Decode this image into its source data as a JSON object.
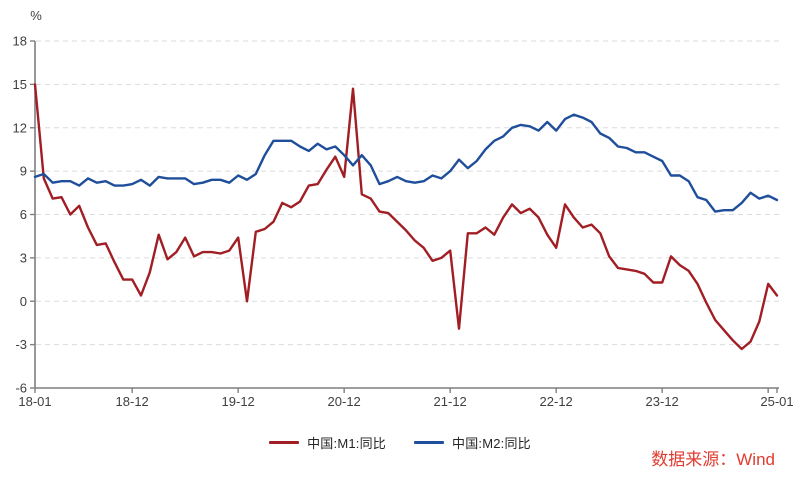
{
  "chart": {
    "unit_label": "%",
    "source_label": "数据来源：Wind",
    "colors": {
      "m1_line": "#a01e24",
      "m2_line": "#1f4e9b",
      "axis": "#7f7f7f",
      "grid": "#dbdbdb",
      "tick_text": "#404040",
      "source_text": "#e03c31"
    }
  },
  "chart_data": {
    "type": "line",
    "title": "",
    "ylabel": "%",
    "ylim": [
      -6,
      18
    ],
    "y_ticks": [
      18,
      15,
      12,
      9,
      6,
      3,
      0,
      -3,
      -6
    ],
    "grid": "horizontal-dashed",
    "legend_position": "bottom-center",
    "x_start": "2018-01",
    "x_end": "2025-01",
    "x_ticks": [
      {
        "label": "18-01",
        "month_index": 0
      },
      {
        "label": "18-12",
        "month_index": 11
      },
      {
        "label": "19-12",
        "month_index": 23
      },
      {
        "label": "20-12",
        "month_index": 35
      },
      {
        "label": "21-12",
        "month_index": 47
      },
      {
        "label": "22-12",
        "month_index": 59
      },
      {
        "label": "23-12",
        "month_index": 71
      },
      {
        "label": "",
        "month_index": 83
      },
      {
        "label": "25-01",
        "month_index": 84
      }
    ],
    "series": [
      {
        "name": "中国:M1:同比",
        "color": "#a01e24",
        "values": [
          15.0,
          8.5,
          7.1,
          7.2,
          6.0,
          6.6,
          5.1,
          3.9,
          4.0,
          2.7,
          1.5,
          1.5,
          0.4,
          2.0,
          4.6,
          2.9,
          3.4,
          4.4,
          3.1,
          3.4,
          3.4,
          3.3,
          3.5,
          4.4,
          0.0,
          4.8,
          5.0,
          5.5,
          6.8,
          6.5,
          6.9,
          8.0,
          8.1,
          9.1,
          10.0,
          8.6,
          14.7,
          7.4,
          7.1,
          6.2,
          6.1,
          5.5,
          4.9,
          4.2,
          3.7,
          2.8,
          3.0,
          3.5,
          -1.9,
          4.7,
          4.7,
          5.1,
          4.6,
          5.8,
          6.7,
          6.1,
          6.4,
          5.8,
          4.6,
          3.7,
          6.7,
          5.8,
          5.1,
          5.3,
          4.7,
          3.1,
          2.3,
          2.2,
          2.1,
          1.9,
          1.3,
          1.3,
          3.1,
          2.5,
          2.1,
          1.2,
          -0.1,
          -1.3,
          -2.0,
          -2.7,
          -3.3,
          -2.8,
          -1.4,
          1.2,
          0.4
        ]
      },
      {
        "name": "中国:M2:同比",
        "color": "#1f4e9b",
        "values": [
          8.6,
          8.8,
          8.2,
          8.3,
          8.3,
          8.0,
          8.5,
          8.2,
          8.3,
          8.0,
          8.0,
          8.1,
          8.4,
          8.0,
          8.6,
          8.5,
          8.5,
          8.5,
          8.1,
          8.2,
          8.4,
          8.4,
          8.2,
          8.7,
          8.4,
          8.8,
          10.1,
          11.1,
          11.1,
          11.1,
          10.7,
          10.4,
          10.9,
          10.5,
          10.7,
          10.1,
          9.4,
          10.1,
          9.4,
          8.1,
          8.3,
          8.6,
          8.3,
          8.2,
          8.3,
          8.7,
          8.5,
          9.0,
          9.8,
          9.2,
          9.7,
          10.5,
          11.1,
          11.4,
          12.0,
          12.2,
          12.1,
          11.8,
          12.4,
          11.8,
          12.6,
          12.9,
          12.7,
          12.4,
          11.6,
          11.3,
          10.7,
          10.6,
          10.3,
          10.3,
          10.0,
          9.7,
          8.7,
          8.7,
          8.3,
          7.2,
          7.0,
          6.2,
          6.3,
          6.3,
          6.8,
          7.5,
          7.1,
          7.3,
          7.0
        ]
      }
    ]
  }
}
